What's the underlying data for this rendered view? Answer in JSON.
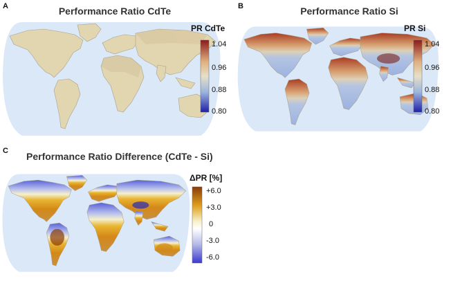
{
  "panels": [
    {
      "letter": "A",
      "title": "Performance Ratio CdTe",
      "colorbar": {
        "label": "PR CdTe",
        "ticks": [
          "1.04",
          "0.96",
          "0.88",
          "0.80"
        ],
        "colors": [
          "#8b1a1a",
          "#e0b080",
          "#e6e0c8",
          "#9cb6de",
          "#2020a8"
        ]
      }
    },
    {
      "letter": "B",
      "title": "Performance Ratio Si",
      "colorbar": {
        "label": "PR Si",
        "ticks": [
          "1.04",
          "0.96",
          "0.88",
          "0.80"
        ],
        "colors": [
          "#8b1a1a",
          "#e0b080",
          "#e6e0c8",
          "#9cb6de",
          "#2020a8"
        ]
      }
    },
    {
      "letter": "C",
      "title": "Performance Ratio Difference (CdTe - Si)",
      "colorbar": {
        "label": "ΔPR [%]",
        "ticks": [
          "+6.0",
          "+3.0",
          "0",
          "-3.0",
          "-6.0"
        ],
        "colors": [
          "#8a3b06",
          "#e0a020",
          "#f6f0c8",
          "#ffffff",
          "#b8bce8",
          "#3a3ad0"
        ]
      }
    }
  ],
  "colors": {
    "ocean": "#dbe8f8",
    "cdte_land": "#e2d6b0",
    "si_north": "#b85a3c",
    "si_south": "#a9bde3",
    "diff_north": "#6a72dc",
    "diff_south": "#d98a1c"
  }
}
